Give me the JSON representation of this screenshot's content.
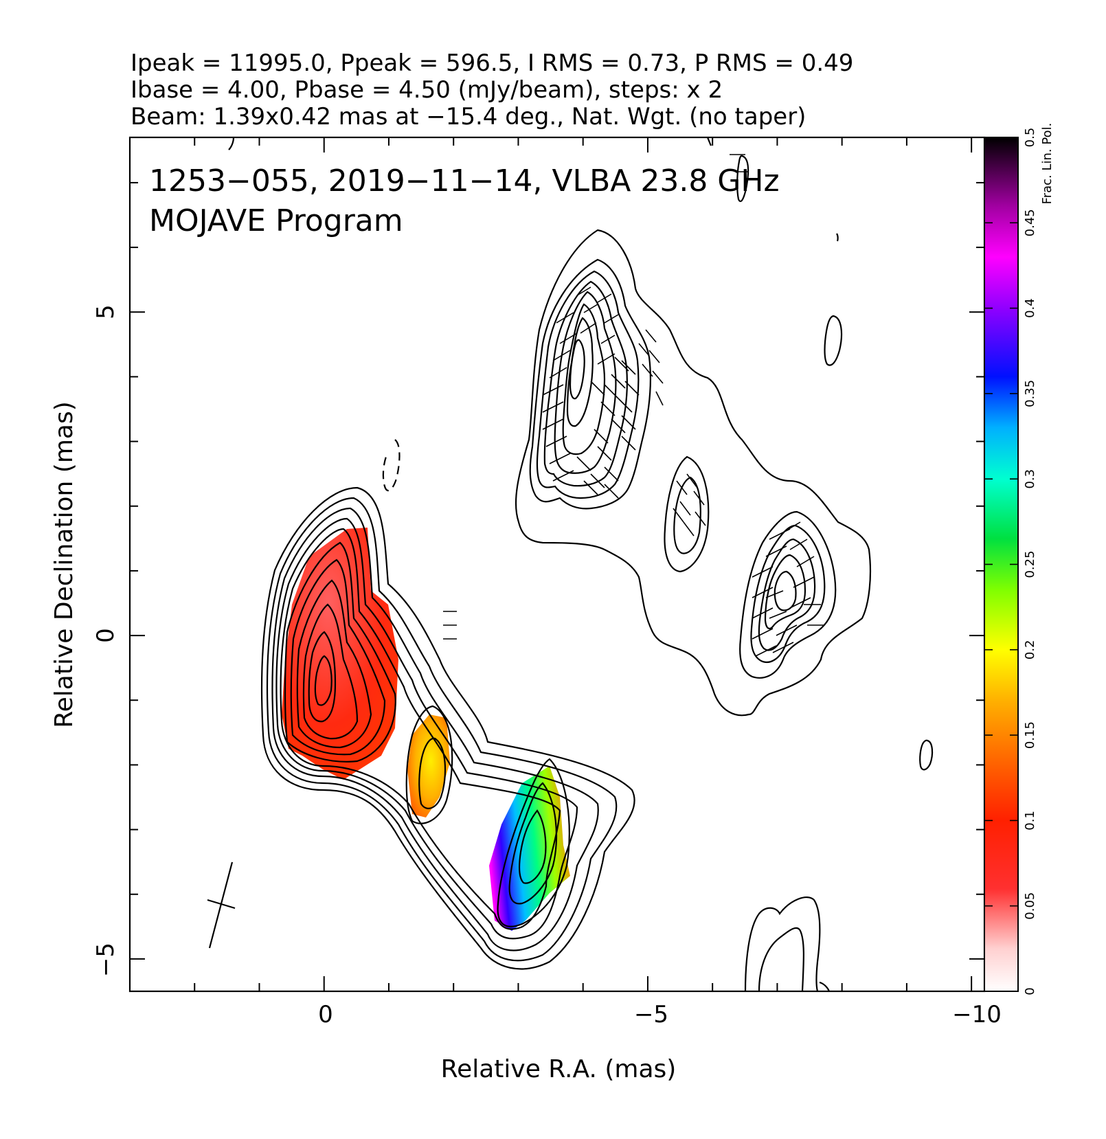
{
  "header": {
    "line1": "Ipeak = 11995.0, Ppeak = 596.5, I RMS = 0.73, P RMS = 0.49",
    "line2": "Ibase = 4.00, Pbase = 4.50 (mJy/beam), steps: x 2",
    "line3": "Beam: 1.39x0.42 mas at −15.4 deg., Nat. Wgt. (no taper)"
  },
  "annotation": {
    "line1": "1253−055, 2019−11−14, VLBA 23.8 GHz",
    "line2": "MOJAVE Program"
  },
  "chart_data": {
    "type": "heatmap",
    "description_of_layers": "Stokes I contours with fractional linear polarization color map and EVPA ticks",
    "xlabel": "Relative R.A. (mas)",
    "ylabel": "Relative Declination (mas)",
    "xlim": [
      3.0,
      -10.2
    ],
    "ylim": [
      -5.5,
      7.7
    ],
    "x_ticks": [
      {
        "value": 0,
        "label": "0"
      },
      {
        "value": -5,
        "label": "−5"
      },
      {
        "value": -10,
        "label": "−10"
      }
    ],
    "y_ticks": [
      {
        "value": -5,
        "label": "−5"
      },
      {
        "value": 0,
        "label": "0"
      },
      {
        "value": 5,
        "label": "5"
      }
    ],
    "colorbar": {
      "label": "Frac. Lin. Pol.",
      "range": [
        0,
        0.5
      ],
      "ticks": [
        "0",
        "0.05",
        "0.1",
        "0.15",
        "0.2",
        "0.25",
        "0.3",
        "0.35",
        "0.4",
        "0.45",
        "0.5"
      ]
    },
    "polarized_components": [
      {
        "ra": 0.0,
        "dec": -0.5,
        "frac_pol": 0.06
      },
      {
        "ra": -1.6,
        "dec": -2.2,
        "frac_pol": 0.17
      },
      {
        "ra": -3.2,
        "dec": -3.3,
        "frac_pol": 0.32
      }
    ],
    "beam": {
      "major_mas": 1.39,
      "minor_mas": 0.42,
      "pa_deg": -15.4
    }
  }
}
